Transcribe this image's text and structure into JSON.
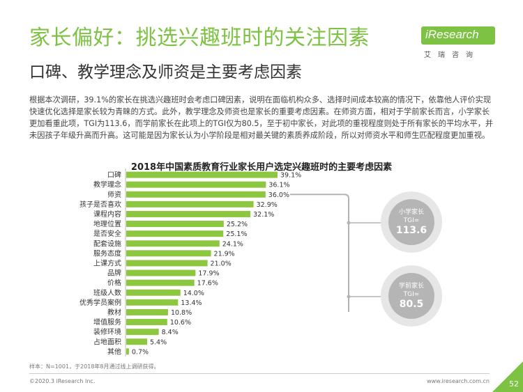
{
  "header": {
    "title": "家长偏好：挑选兴趣班时的关注因素",
    "subtitle": "口碑、教学理念及师资是主要考虑因素"
  },
  "logo": {
    "text": "iResearch",
    "subtext": "艾瑞咨询"
  },
  "intro": "根据本次调研，39.1%的家长在挑选兴趣班时会考虑口碑因素，说明在面临机构众多、选择时间成本较高的情况下，依靠他人评价实现快速优化选择是家长较为青睐的方式。此外，教学理念及师资也是家长的重要考虑因素。在师资方面，相对于学前家长而言，小学家长更加看重此项，TGI为113.6，而学前家长在此项上的TGI仅为80.5，至于初中家长，对此项的重视程度则处于所有家长的平均水平，并未因孩子年级升高而升高。这可能是因为家长认为小学阶段是相对最关键的素质养成阶段，所以对师资水平和师生匹配程度更加重视。",
  "chart_data": {
    "type": "bar",
    "orientation": "horizontal",
    "title": "2018年中国素质教育行业家长用户选定兴趣班时的主要考虑因素",
    "categories": [
      "口碑",
      "教学理念",
      "师资",
      "孩子是否喜欢",
      "课程内容",
      "地理位置",
      "是否安全",
      "配套设施",
      "服务态度",
      "上课方式",
      "品牌",
      "价格",
      "班级人数",
      "优秀学员案例",
      "教材",
      "增值服务",
      "装修环境",
      "占地面积",
      "其他"
    ],
    "values": [
      39.1,
      36.1,
      36.0,
      32.9,
      32.1,
      25.2,
      25.1,
      24.1,
      21.9,
      21.0,
      17.9,
      17.6,
      14.0,
      13.4,
      10.8,
      10.6,
      8.4,
      5.4,
      0.7
    ],
    "value_labels": [
      "39.1%",
      "36.1%",
      "36.0%",
      "32.9%",
      "32.1%",
      "25.2%",
      "25.1%",
      "24.1%",
      "21.9%",
      "21.0%",
      "17.9%",
      "17.6%",
      "14.0%",
      "13.4%",
      "10.8%",
      "10.6%",
      "8.4%",
      "5.4%",
      "0.7%"
    ],
    "xlim": [
      0,
      40
    ],
    "bar_color": "#8dc63f",
    "highlight_color": "#b3b3b3",
    "highlight_category": "师资",
    "grid": false,
    "legend": "none"
  },
  "tgi": [
    {
      "group": "小学家长",
      "label": "TGI=",
      "value": "113.6"
    },
    {
      "group": "学前家长",
      "label": "TGI=",
      "value": "80.5"
    }
  ],
  "footnote": "样本：N=1001，于2018年8月通过线上调研获得。",
  "footer": {
    "copyright": "©2020.3 iResearch Inc.",
    "website": "www.iresearch.com.cn",
    "page": "52"
  },
  "colors": {
    "accent": "#7dc243",
    "text": "#333333",
    "circle_outer": "#e6e6e6",
    "circle_inner": "#b5b5b5"
  }
}
